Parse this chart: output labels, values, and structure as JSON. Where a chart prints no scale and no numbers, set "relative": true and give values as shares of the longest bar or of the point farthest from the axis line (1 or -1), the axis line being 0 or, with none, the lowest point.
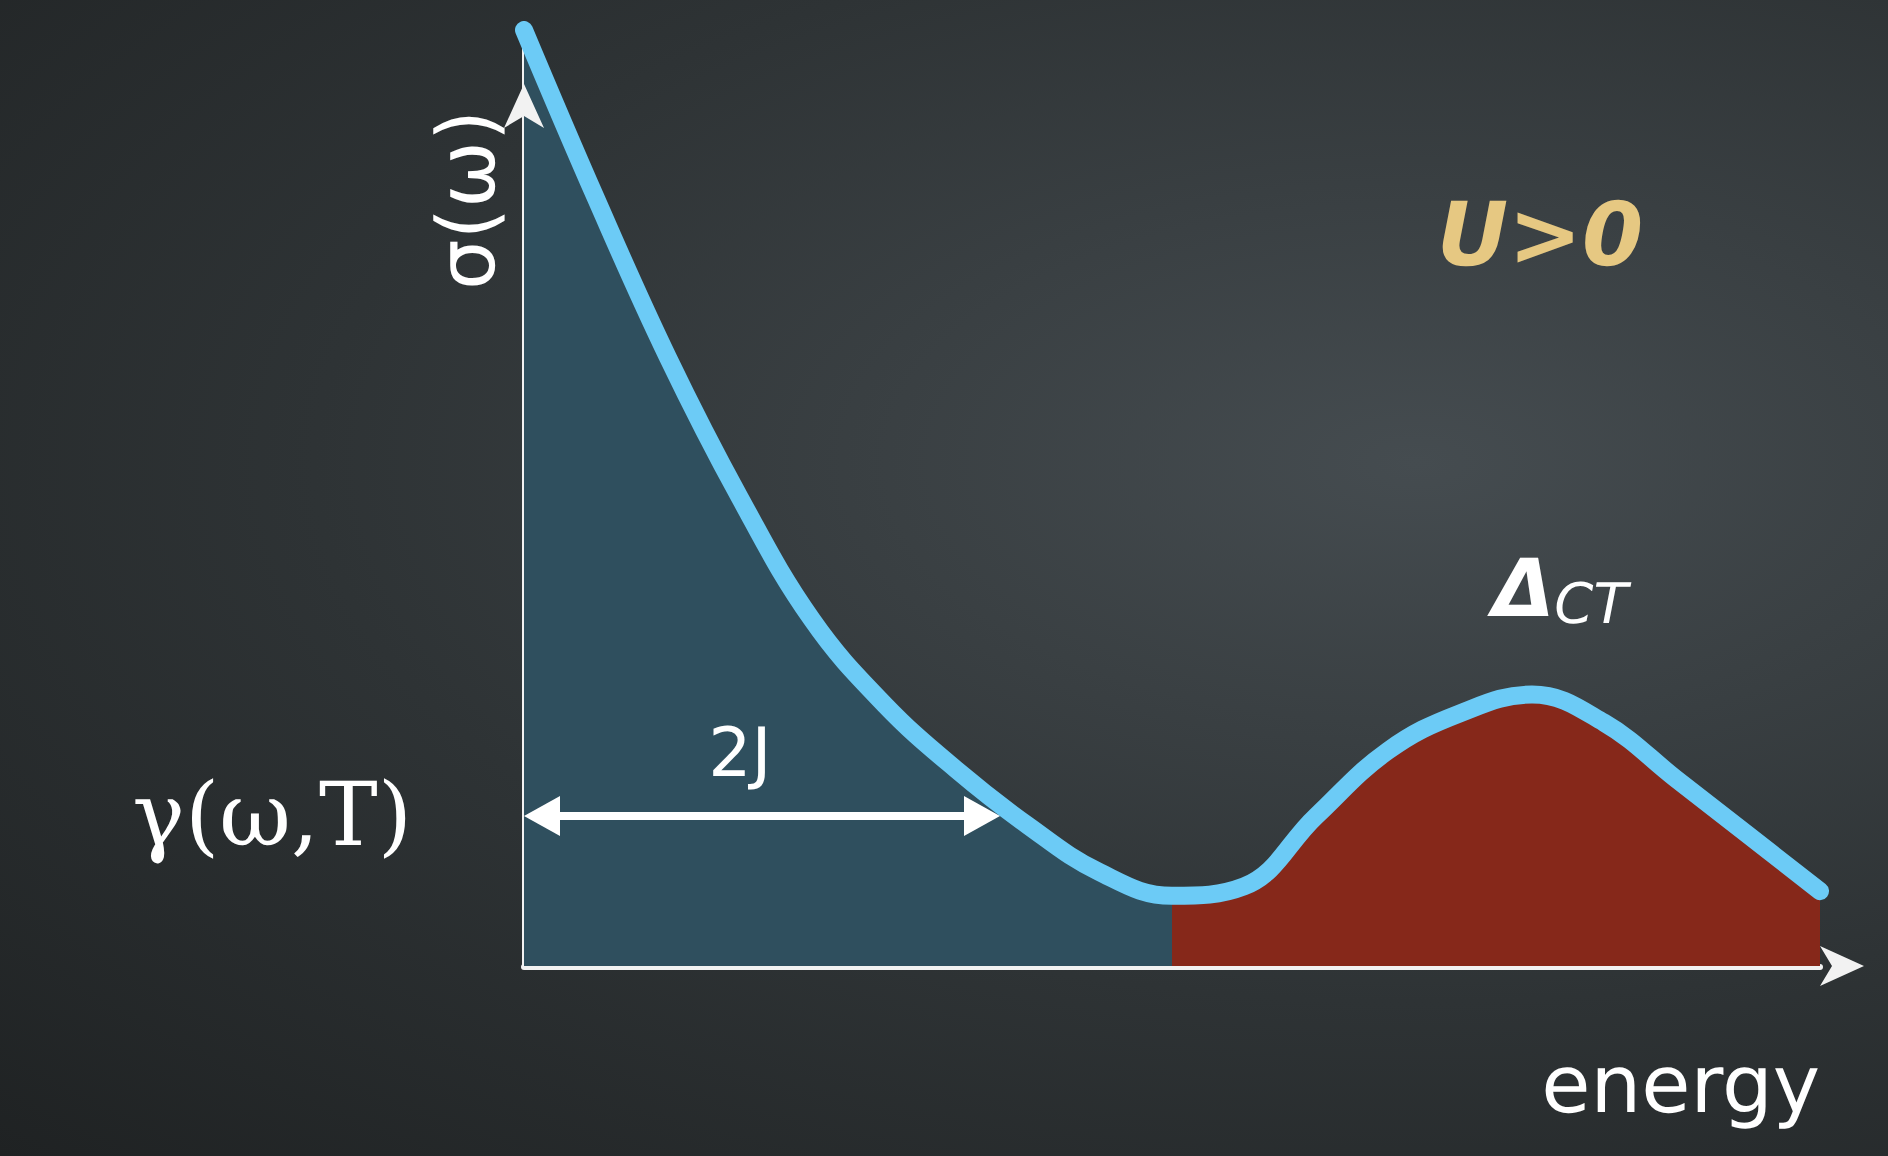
{
  "chart_data": {
    "type": "line",
    "relative": true,
    "xlabel": "energy",
    "ylabel": "σ(ω)",
    "categories": [
      null,
      null,
      null,
      null,
      null,
      null,
      null,
      null,
      null,
      null,
      null,
      null,
      null,
      null,
      null,
      null,
      null,
      null,
      null
    ],
    "series": [
      {
        "type": "area",
        "color": "#2f4f5e",
        "values": [
          1.0,
          0.82,
          0.65,
          0.5,
          0.37,
          0.28,
          0.21,
          0.15,
          0.1,
          0.075,
          null,
          null,
          null,
          null,
          null,
          null,
          null,
          null,
          null
        ]
      },
      {
        "type": "area",
        "color": "#86281a",
        "values": [
          null,
          null,
          null,
          null,
          null,
          null,
          null,
          null,
          null,
          0.075,
          0.085,
          0.16,
          0.23,
          0.27,
          0.29,
          0.26,
          0.2,
          0.14,
          0.08
        ]
      },
      {
        "type": "line",
        "color": "#6ccbf6",
        "values": [
          1.0,
          0.82,
          0.65,
          0.5,
          0.37,
          0.28,
          0.21,
          0.15,
          0.1,
          0.075,
          0.085,
          0.16,
          0.23,
          0.27,
          0.29,
          0.26,
          0.2,
          0.14,
          0.08
        ]
      }
    ],
    "annotations": [
      "γ(ω,T)",
      "2J",
      "U>0",
      "Δ$_{CT}$"
    ],
    "grid": false,
    "line_style": "solid"
  }
}
